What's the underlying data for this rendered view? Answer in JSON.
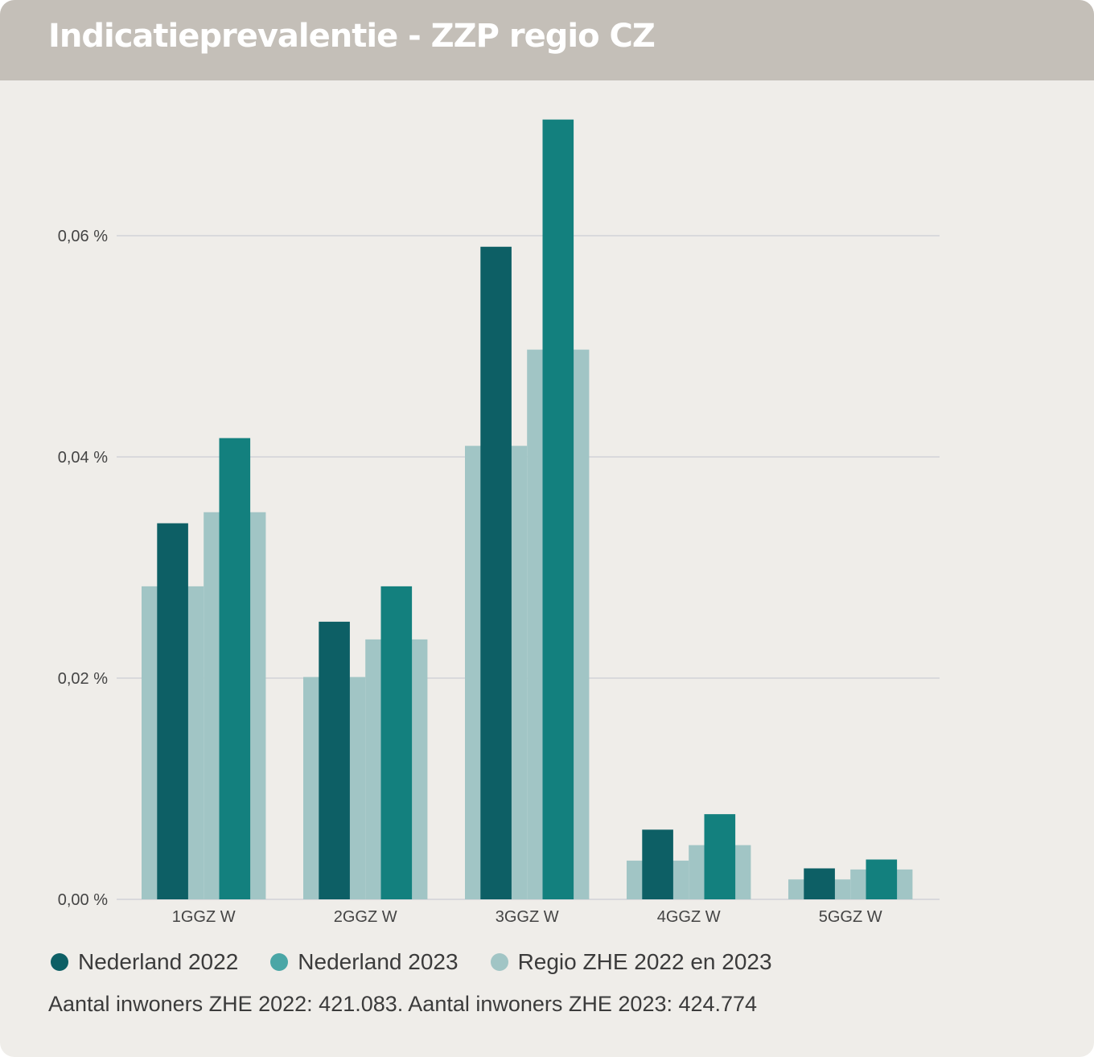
{
  "title": "Indicatieprevalentie - ZZP regio CZ",
  "colors": {
    "header_bg": "#c4bfb8",
    "card_bg": "#efede9",
    "gridline": "#d9d9dc",
    "nederland_2022": "#0d5f65",
    "nederland_2023": "#13807e",
    "regio": "#a1c5c5"
  },
  "legend": [
    {
      "label": "Nederland 2022",
      "color": "#0d5f65"
    },
    {
      "label": "Nederland 2023",
      "color": "#13807e"
    },
    {
      "label": "Regio ZHE 2022 en 2023",
      "color": "#a1c5c5"
    }
  ],
  "footnote": "Aantal inwoners ZHE 2022: 421.083. Aantal inwoners ZHE 2023: 424.774",
  "chart_data": {
    "type": "bar",
    "categories": [
      "1GGZ W",
      "2GGZ W",
      "3GGZ W",
      "4GGZ W",
      "5GGZ W"
    ],
    "y_ticks": [
      {
        "value": 0.0,
        "label": "0,00 %"
      },
      {
        "value": 0.02,
        "label": "0,02 %"
      },
      {
        "value": 0.04,
        "label": "0,04 %"
      },
      {
        "value": 0.06,
        "label": "0,06 %"
      }
    ],
    "ylim": [
      0,
      0.072
    ],
    "grid": true,
    "legend_position": "bottom-left",
    "series": [
      {
        "name": "Nederland 2022",
        "color": "#0d5f65",
        "values": [
          0.034,
          0.0251,
          0.059,
          0.0063,
          0.0028
        ]
      },
      {
        "name": "Nederland 2023",
        "color": "#13807e",
        "values": [
          0.0417,
          0.0283,
          0.0705,
          0.0077,
          0.0036
        ]
      }
    ],
    "regio_series": {
      "name": "Regio ZHE 2022 en 2023",
      "color": "#a1c5c5",
      "values_2022": [
        0.0283,
        0.0201,
        0.041,
        0.0035,
        0.0018
      ],
      "values_2023": [
        0.035,
        0.0235,
        0.0497,
        0.0049,
        0.0027
      ]
    }
  }
}
